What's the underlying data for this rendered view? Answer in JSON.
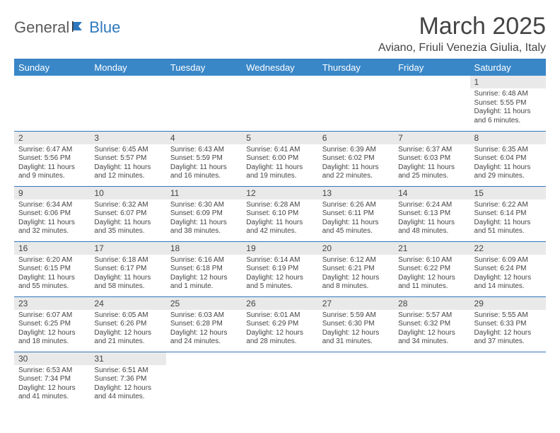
{
  "logo": {
    "text1": "General",
    "text2": "Blue"
  },
  "title": "March 2025",
  "location": "Aviano, Friuli Venezia Giulia, Italy",
  "colors": {
    "header_bg": "#3a87c8",
    "header_text": "#ffffff",
    "rule": "#2f78bd",
    "daynum_bg": "#e9e9e9",
    "body_text": "#444444",
    "logo_gray": "#5a5a5a",
    "logo_blue": "#2f78bd"
  },
  "weekdays": [
    "Sunday",
    "Monday",
    "Tuesday",
    "Wednesday",
    "Thursday",
    "Friday",
    "Saturday"
  ],
  "weeks": [
    [
      null,
      null,
      null,
      null,
      null,
      null,
      {
        "n": "1",
        "sunrise": "6:48 AM",
        "sunset": "5:55 PM",
        "daylight": "11 hours and 6 minutes."
      }
    ],
    [
      {
        "n": "2",
        "sunrise": "6:47 AM",
        "sunset": "5:56 PM",
        "daylight": "11 hours and 9 minutes."
      },
      {
        "n": "3",
        "sunrise": "6:45 AM",
        "sunset": "5:57 PM",
        "daylight": "11 hours and 12 minutes."
      },
      {
        "n": "4",
        "sunrise": "6:43 AM",
        "sunset": "5:59 PM",
        "daylight": "11 hours and 16 minutes."
      },
      {
        "n": "5",
        "sunrise": "6:41 AM",
        "sunset": "6:00 PM",
        "daylight": "11 hours and 19 minutes."
      },
      {
        "n": "6",
        "sunrise": "6:39 AM",
        "sunset": "6:02 PM",
        "daylight": "11 hours and 22 minutes."
      },
      {
        "n": "7",
        "sunrise": "6:37 AM",
        "sunset": "6:03 PM",
        "daylight": "11 hours and 25 minutes."
      },
      {
        "n": "8",
        "sunrise": "6:35 AM",
        "sunset": "6:04 PM",
        "daylight": "11 hours and 29 minutes."
      }
    ],
    [
      {
        "n": "9",
        "sunrise": "6:34 AM",
        "sunset": "6:06 PM",
        "daylight": "11 hours and 32 minutes."
      },
      {
        "n": "10",
        "sunrise": "6:32 AM",
        "sunset": "6:07 PM",
        "daylight": "11 hours and 35 minutes."
      },
      {
        "n": "11",
        "sunrise": "6:30 AM",
        "sunset": "6:09 PM",
        "daylight": "11 hours and 38 minutes."
      },
      {
        "n": "12",
        "sunrise": "6:28 AM",
        "sunset": "6:10 PM",
        "daylight": "11 hours and 42 minutes."
      },
      {
        "n": "13",
        "sunrise": "6:26 AM",
        "sunset": "6:11 PM",
        "daylight": "11 hours and 45 minutes."
      },
      {
        "n": "14",
        "sunrise": "6:24 AM",
        "sunset": "6:13 PM",
        "daylight": "11 hours and 48 minutes."
      },
      {
        "n": "15",
        "sunrise": "6:22 AM",
        "sunset": "6:14 PM",
        "daylight": "11 hours and 51 minutes."
      }
    ],
    [
      {
        "n": "16",
        "sunrise": "6:20 AM",
        "sunset": "6:15 PM",
        "daylight": "11 hours and 55 minutes."
      },
      {
        "n": "17",
        "sunrise": "6:18 AM",
        "sunset": "6:17 PM",
        "daylight": "11 hours and 58 minutes."
      },
      {
        "n": "18",
        "sunrise": "6:16 AM",
        "sunset": "6:18 PM",
        "daylight": "12 hours and 1 minute."
      },
      {
        "n": "19",
        "sunrise": "6:14 AM",
        "sunset": "6:19 PM",
        "daylight": "12 hours and 5 minutes."
      },
      {
        "n": "20",
        "sunrise": "6:12 AM",
        "sunset": "6:21 PM",
        "daylight": "12 hours and 8 minutes."
      },
      {
        "n": "21",
        "sunrise": "6:10 AM",
        "sunset": "6:22 PM",
        "daylight": "12 hours and 11 minutes."
      },
      {
        "n": "22",
        "sunrise": "6:09 AM",
        "sunset": "6:24 PM",
        "daylight": "12 hours and 14 minutes."
      }
    ],
    [
      {
        "n": "23",
        "sunrise": "6:07 AM",
        "sunset": "6:25 PM",
        "daylight": "12 hours and 18 minutes."
      },
      {
        "n": "24",
        "sunrise": "6:05 AM",
        "sunset": "6:26 PM",
        "daylight": "12 hours and 21 minutes."
      },
      {
        "n": "25",
        "sunrise": "6:03 AM",
        "sunset": "6:28 PM",
        "daylight": "12 hours and 24 minutes."
      },
      {
        "n": "26",
        "sunrise": "6:01 AM",
        "sunset": "6:29 PM",
        "daylight": "12 hours and 28 minutes."
      },
      {
        "n": "27",
        "sunrise": "5:59 AM",
        "sunset": "6:30 PM",
        "daylight": "12 hours and 31 minutes."
      },
      {
        "n": "28",
        "sunrise": "5:57 AM",
        "sunset": "6:32 PM",
        "daylight": "12 hours and 34 minutes."
      },
      {
        "n": "29",
        "sunrise": "5:55 AM",
        "sunset": "6:33 PM",
        "daylight": "12 hours and 37 minutes."
      }
    ],
    [
      {
        "n": "30",
        "sunrise": "6:53 AM",
        "sunset": "7:34 PM",
        "daylight": "12 hours and 41 minutes."
      },
      {
        "n": "31",
        "sunrise": "6:51 AM",
        "sunset": "7:36 PM",
        "daylight": "12 hours and 44 minutes."
      },
      null,
      null,
      null,
      null,
      null
    ]
  ],
  "labels": {
    "sunrise": "Sunrise:",
    "sunset": "Sunset:",
    "daylight": "Daylight:"
  }
}
